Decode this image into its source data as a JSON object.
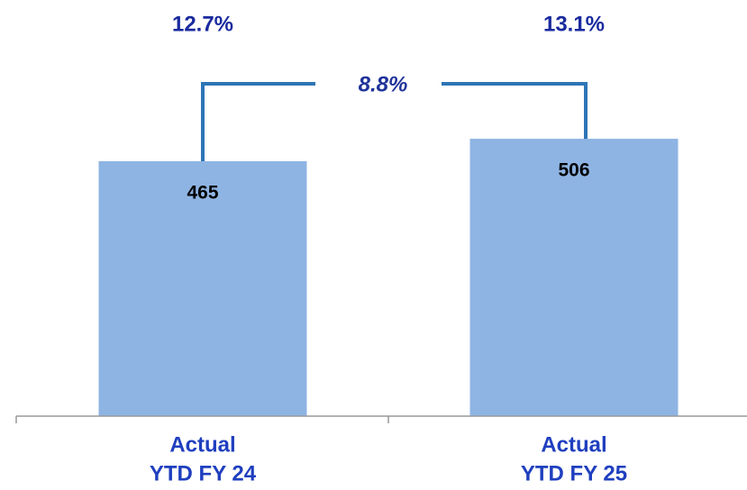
{
  "chart_data": {
    "type": "bar",
    "categories": [
      [
        "Actual",
        "YTD FY 24"
      ],
      [
        "Actual",
        "YTD FY 25"
      ]
    ],
    "values": [
      465,
      506
    ],
    "color": "#8eb4e3",
    "ylim": [
      0,
      700
    ],
    "annotations": [
      "12.7%",
      "13.1%"
    ],
    "growth_label": "8.8%"
  }
}
